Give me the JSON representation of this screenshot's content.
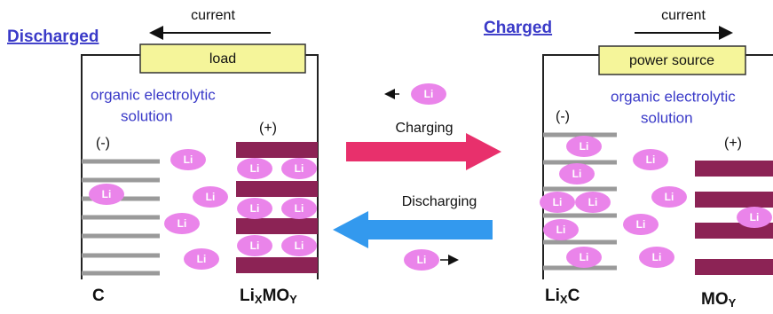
{
  "ion_label": "Li",
  "middle": {
    "charging": "Charging",
    "discharging": "Discharging"
  },
  "left": {
    "state": "Discharged",
    "current": "current",
    "device": "load",
    "electrolyte": [
      "organic electrolytic",
      "solution"
    ],
    "anode_sign": "(-)",
    "cathode_sign": "(+)",
    "anode_label": "C",
    "cathode_label": [
      "Li",
      "X",
      "MO",
      "Y"
    ]
  },
  "right": {
    "state": "Charged",
    "current": "current",
    "device": "power source",
    "electrolyte": [
      "organic electrolytic",
      "solution"
    ],
    "anode_sign": "(-)",
    "cathode_sign": "(+)",
    "anode_label": [
      "Li",
      "X",
      "C"
    ],
    "cathode_label": [
      "MO",
      "Y"
    ]
  }
}
